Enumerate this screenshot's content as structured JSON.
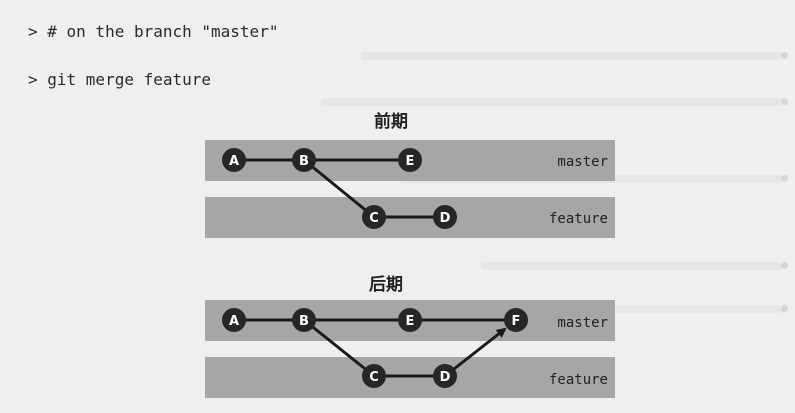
{
  "commands": {
    "comment": "> # on the branch \"master\"",
    "merge": "> git merge feature"
  },
  "diagrams": {
    "before": {
      "title": "前期",
      "lanes": [
        "master",
        "feature"
      ],
      "nodes": [
        "A",
        "B",
        "E",
        "C",
        "D"
      ]
    },
    "after": {
      "title": "后期",
      "lanes": [
        "master",
        "feature"
      ],
      "nodes": [
        "A",
        "B",
        "E",
        "F",
        "C",
        "D"
      ]
    }
  },
  "colors": {
    "lane": "#a6a6a6",
    "node": "#262626",
    "edge": "#1a1a1a",
    "background": "#efefed"
  }
}
